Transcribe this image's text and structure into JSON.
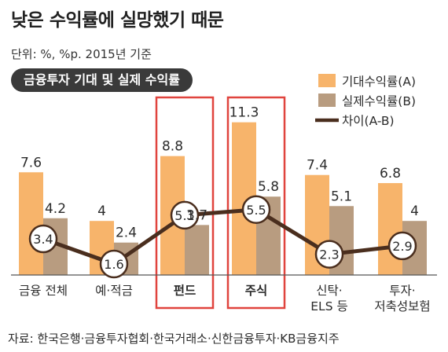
{
  "page": {
    "title": "낮은 수익률에 실망했기 때문",
    "unit_note": "단위: %, %p. 2015년 기준",
    "panel_label": "금융투자 기대 및 실제 수익률",
    "source": "자료: 한국은행·금융투자협회·한국거래소·신한금융투자·KB금융지주"
  },
  "colors": {
    "expected": "#F7B46B",
    "actual": "#B89C80",
    "gap_line": "#4A2E1E",
    "highlight_box": "#E0443E",
    "axis": "#555555"
  },
  "chart_data": {
    "type": "bar",
    "title": "금융투자 기대 및 실제 수익률",
    "categories": [
      [
        "금융 전체"
      ],
      [
        "예·적금"
      ],
      [
        "펀드"
      ],
      [
        "주식"
      ],
      [
        "신탁·",
        "ELS 등"
      ],
      [
        "투자·",
        "저축성보험"
      ]
    ],
    "highlighted": [
      2,
      3
    ],
    "series": [
      {
        "name": "기대수익률(A)",
        "type": "bar",
        "values": [
          7.6,
          4,
          8.8,
          11.3,
          7.4,
          6.8
        ],
        "labels": [
          "7.6",
          "4",
          "8.8",
          "11.3",
          "7.4",
          "6.8"
        ]
      },
      {
        "name": "실제수익률(B)",
        "type": "bar",
        "values": [
          4.2,
          2.4,
          3.7,
          5.8,
          5.1,
          4
        ],
        "labels": [
          "4.2",
          "2.4",
          "3.7",
          "5.8",
          "5.1",
          "4"
        ]
      },
      {
        "name": "차이(A-B)",
        "type": "line",
        "values": [
          3.4,
          1.6,
          5.1,
          5.5,
          2.3,
          2.9
        ],
        "labels": [
          "3.4",
          "1.6",
          "5.1",
          "5.5",
          "2.3",
          "2.9"
        ]
      }
    ],
    "ylim": [
      0,
      12
    ],
    "grid": false,
    "legend_position": "top-right"
  }
}
